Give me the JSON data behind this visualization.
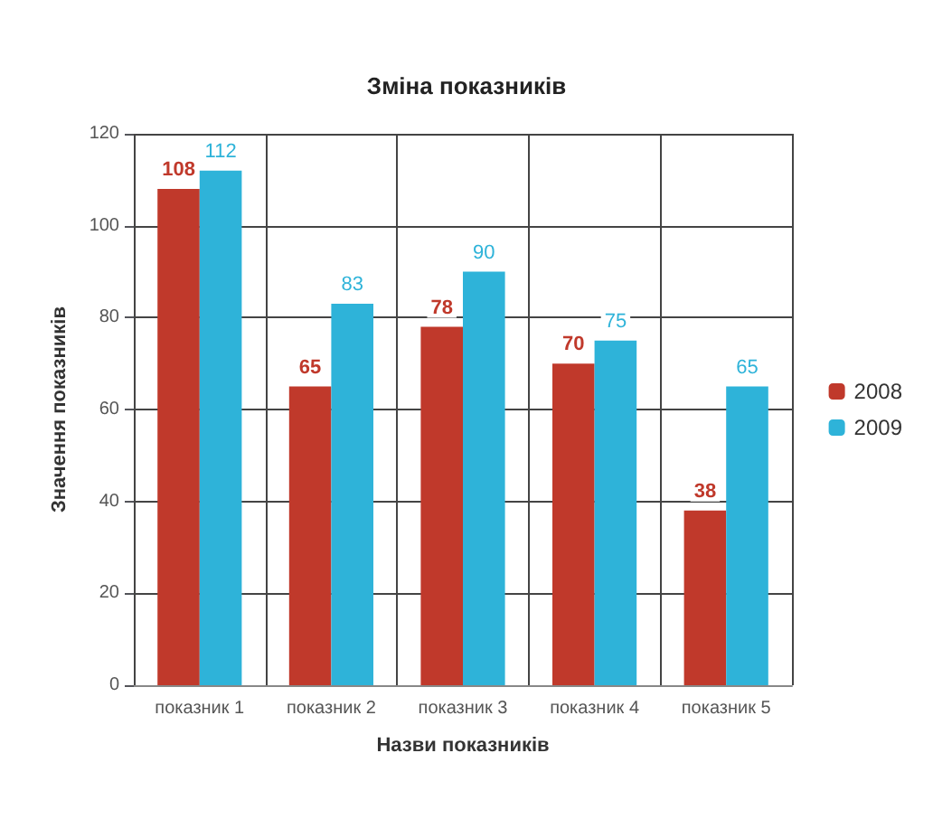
{
  "chart_data": {
    "type": "bar",
    "title": "Зміна показників",
    "xlabel": "Назви показників",
    "ylabel": "Значення показників",
    "categories": [
      "показник 1",
      "показник 2",
      "показник 3",
      "показник 4",
      "показник 5"
    ],
    "series": [
      {
        "name": "2008",
        "color": "#c0392b",
        "values": [
          108,
          65,
          78,
          70,
          38
        ]
      },
      {
        "name": "2009",
        "color": "#2eb3d9",
        "values": [
          112,
          83,
          90,
          75,
          65
        ]
      }
    ],
    "ylim": [
      0,
      120
    ],
    "yticks": [
      0,
      20,
      40,
      60,
      80,
      100,
      120
    ],
    "grid": true,
    "legend": "right",
    "data_labels": true
  }
}
